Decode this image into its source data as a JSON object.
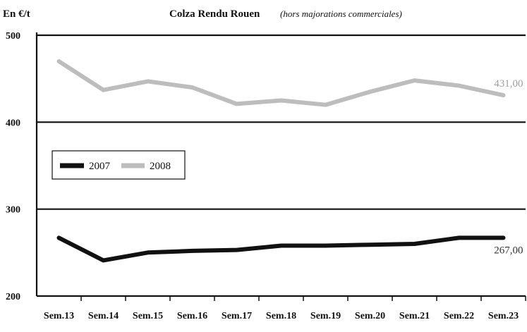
{
  "chart_data": {
    "type": "line",
    "title": "Colza Rendu Rouen",
    "subtitle": "(hors majorations commerciales)",
    "ylabel": "En €/t",
    "xlabel": "",
    "categories": [
      "Sem.13",
      "Sem.14",
      "Sem.15",
      "Sem.16",
      "Sem.17",
      "Sem.18",
      "Sem.19",
      "Sem.20",
      "Sem.21",
      "Sem.22",
      "Sem.23"
    ],
    "ylim": [
      200,
      500
    ],
    "yticks": [
      200,
      300,
      400,
      500
    ],
    "grid": true,
    "legend_position": "middle-left",
    "series": [
      {
        "name": "2007",
        "color": "#111111",
        "values": [
          267,
          241,
          250,
          252,
          253,
          258,
          258,
          259,
          260,
          267,
          267
        ],
        "end_label": "267,00"
      },
      {
        "name": "2008",
        "color": "#bdbdbd",
        "values": [
          470,
          437,
          447,
          440,
          421,
          425,
          420,
          435,
          448,
          442,
          431
        ],
        "end_label": "431,00"
      }
    ]
  }
}
